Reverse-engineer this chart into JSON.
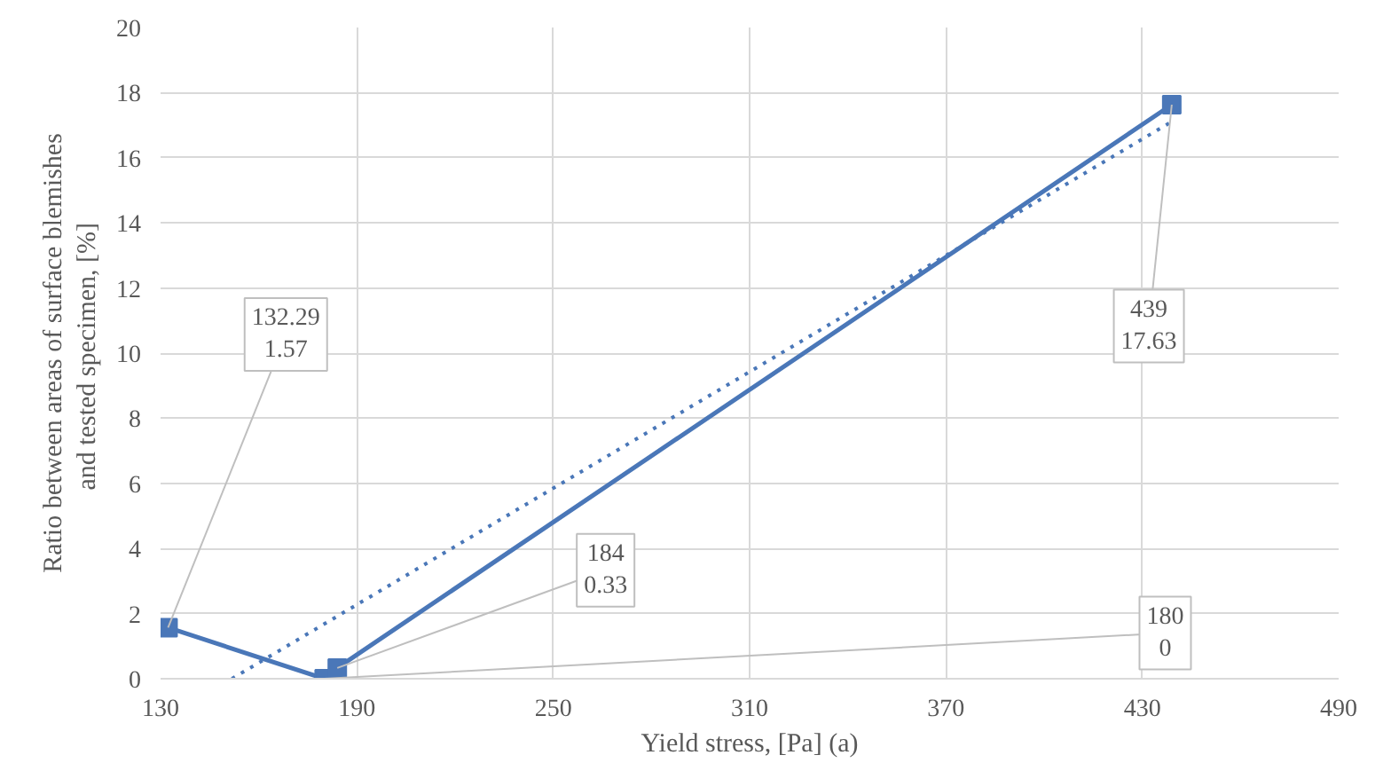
{
  "chart_data": {
    "type": "line",
    "xlabel": "Yield stress, [Pa] (a)",
    "ylabel": "Ratio between areas of surface blemishes\nand tested specimen,  [%]",
    "series": [
      {
        "color": "#4a77b8",
        "marker": "square",
        "line_style": "solid",
        "x": [
          132.29,
          180,
          184,
          439
        ],
        "values": [
          1.57,
          0,
          0.33,
          17.63
        ]
      },
      {
        "color": "#4a77b8",
        "marker": "none",
        "line_style": "dotted",
        "x": [
          151.8,
          439
        ],
        "values": [
          0,
          17.11
        ]
      }
    ],
    "annotations": [
      {
        "text": "132.29\n1.57",
        "x": 132.29,
        "y": 1.57
      },
      {
        "text": "180\n0",
        "x": 180,
        "y": 0
      },
      {
        "text": "184\n0.33",
        "x": 184,
        "y": 0.33
      },
      {
        "text": "439\n17.63",
        "x": 439,
        "y": 17.63
      }
    ],
    "xlim": [
      130,
      490
    ],
    "xticks": [
      130,
      190,
      250,
      310,
      370,
      430,
      490
    ],
    "ylim": [
      0,
      20
    ],
    "yticks": [
      0,
      2,
      4,
      6,
      8,
      10,
      12,
      14,
      16,
      18,
      20
    ],
    "grid": true
  }
}
